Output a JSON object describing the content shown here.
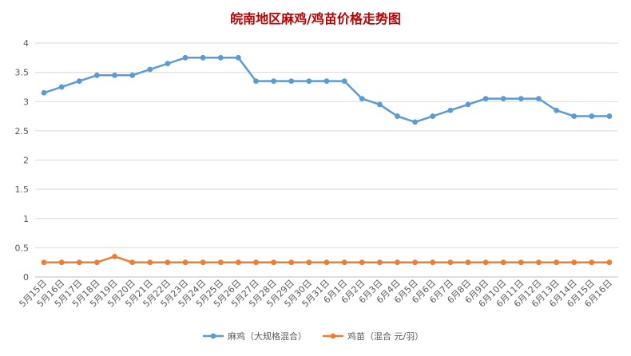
{
  "chart_data": {
    "type": "line",
    "title": "皖南地区麻鸡/鸡苗价格走势图",
    "xlabel": "",
    "ylabel": "",
    "ylim": [
      0,
      4
    ],
    "yticks": [
      "0",
      "0.5",
      "1",
      "1.5",
      "2",
      "2.5",
      "3",
      "3.5",
      "4"
    ],
    "grid": "horizontal",
    "legend_position": "bottom",
    "categories": [
      "5月15日",
      "5月16日",
      "5月17日",
      "5月18日",
      "5月19日",
      "5月20日",
      "5月21日",
      "5月22日",
      "5月23日",
      "5月24日",
      "5月25日",
      "5月26日",
      "5月27日",
      "5月28日",
      "5月29日",
      "5月30日",
      "5月31日",
      "6月1日",
      "6月2日",
      "6月3日",
      "6月4日",
      "6月5日",
      "6月6日",
      "6月7日",
      "6月8日",
      "6月9日",
      "6月10日",
      "6月11日",
      "6月12日",
      "6月13日",
      "6月14日",
      "6月15日",
      "6月16日"
    ],
    "series": [
      {
        "name": "麻鸡（大规格混合）",
        "color": "#5b9bd5",
        "values": [
          3.15,
          3.25,
          3.35,
          3.45,
          3.45,
          3.45,
          3.55,
          3.65,
          3.75,
          3.75,
          3.75,
          3.75,
          3.35,
          3.35,
          3.35,
          3.35,
          3.35,
          3.35,
          3.05,
          2.95,
          2.75,
          2.65,
          2.75,
          2.85,
          2.95,
          3.05,
          3.05,
          3.05,
          3.05,
          2.85,
          2.75,
          2.75,
          2.75
        ]
      },
      {
        "name": "鸡苗（混合 元/羽）",
        "color": "#ed7d31",
        "values": [
          0.25,
          0.25,
          0.25,
          0.25,
          0.35,
          0.25,
          0.25,
          0.25,
          0.25,
          0.25,
          0.25,
          0.25,
          0.25,
          0.25,
          0.25,
          0.25,
          0.25,
          0.25,
          0.25,
          0.25,
          0.25,
          0.25,
          0.25,
          0.25,
          0.25,
          0.25,
          0.25,
          0.25,
          0.25,
          0.25,
          0.25,
          0.25,
          0.25
        ]
      }
    ]
  }
}
